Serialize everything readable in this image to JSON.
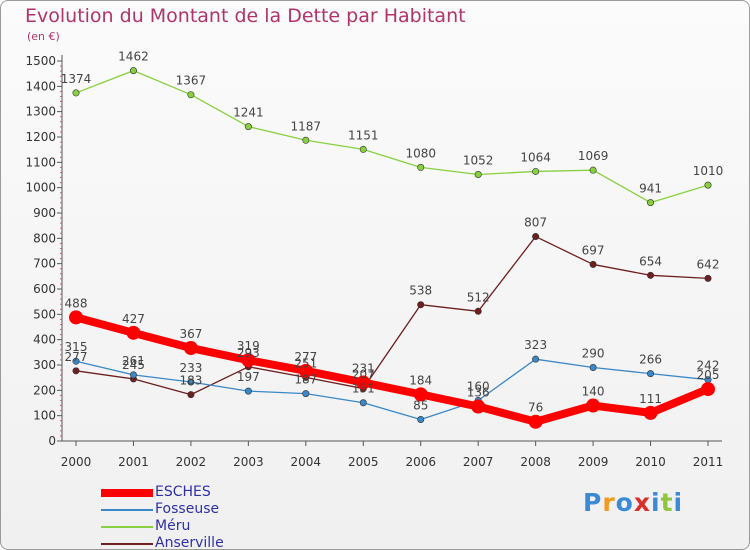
{
  "title": "Evolution du Montant de la Dette par Habitant",
  "subtitle": "(en €)",
  "logo": {
    "text": "Proxiti",
    "colors": [
      "#3b8ad8",
      "#f29b1d",
      "#3b8ad8",
      "#d9302c",
      "#3b8ad8",
      "#8ec63f",
      "#3b8ad8"
    ]
  },
  "chart_data": {
    "type": "line",
    "title": "Evolution du Montant de la Dette par Habitant",
    "unit_label": "(en €)",
    "x": [
      "2000",
      "2001",
      "2002",
      "2003",
      "2004",
      "2005",
      "2006",
      "2007",
      "2008",
      "2009",
      "2010",
      "2011"
    ],
    "ylim": [
      0,
      1500
    ],
    "yticks": [
      0,
      100,
      200,
      300,
      400,
      500,
      600,
      700,
      800,
      900,
      1000,
      1100,
      1200,
      1300,
      1400,
      1500
    ],
    "grid": false,
    "legend_position": "bottom-left",
    "series": [
      {
        "name": "ESCHES",
        "color": "#ff0000",
        "values": [
          488,
          427,
          367,
          319,
          277,
          231,
          184,
          136,
          76,
          140,
          111,
          205
        ],
        "labels": [
          "488",
          "427",
          "367",
          "319",
          "277",
          "231",
          "184",
          "136",
          "76",
          "140",
          "111",
          "205"
        ]
      },
      {
        "name": "Fosseuse",
        "color": "#3a88c8",
        "values": [
          315,
          261,
          233,
          197,
          187,
          151,
          85,
          160,
          323,
          290,
          266,
          242
        ],
        "labels": [
          "315",
          "261",
          "233",
          "197",
          "187",
          "151",
          "85",
          "160",
          "323",
          "290",
          "266",
          "242"
        ]
      },
      {
        "name": "Méru",
        "color": "#88d040",
        "values": [
          1374,
          1462,
          1367,
          1241,
          1187,
          1151,
          1080,
          1052,
          1064,
          1069,
          941,
          1010
        ],
        "labels": [
          "1374",
          "1462",
          "1367",
          "1241",
          "1187",
          "1151",
          "1080",
          "1052",
          "1064",
          "1069",
          "941",
          "1010"
        ]
      },
      {
        "name": "Anserville",
        "color": "#6e1f1f",
        "values": [
          277,
          245,
          183,
          293,
          251,
          207,
          538,
          512,
          807,
          697,
          654,
          642
        ],
        "labels": [
          "277",
          "245",
          "183",
          "293",
          "251",
          "207",
          "538",
          "512",
          "807",
          "697",
          "654",
          "642"
        ]
      }
    ]
  }
}
